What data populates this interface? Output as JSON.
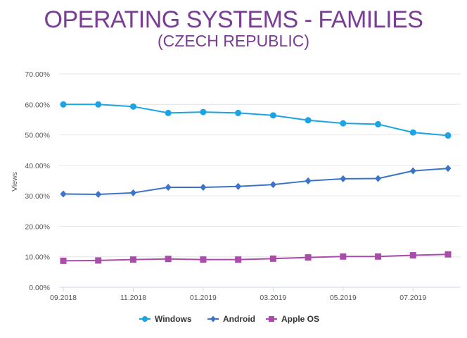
{
  "chart_data": {
    "type": "line",
    "title": "OPERATING SYSTEMS - FAMILIES",
    "subtitle": "(CZECH REPUBLIC)",
    "xlabel": "",
    "ylabel": "Views",
    "ylim": [
      0,
      70
    ],
    "yticks": [
      "0.00%",
      "10.00%",
      "20.00%",
      "30.00%",
      "40.00%",
      "50.00%",
      "60.00%",
      "70.00%"
    ],
    "x": [
      "09.2018",
      "10.2018",
      "11.2018",
      "12.2018",
      "01.2019",
      "02.2019",
      "03.2019",
      "04.2019",
      "05.2019",
      "06.2019",
      "07.2019",
      "08.2019"
    ],
    "xtick_labels": [
      "09.2018",
      "11.2018",
      "01.2019",
      "03.2019",
      "05.2019",
      "07.2019"
    ],
    "grid": true,
    "legend_position": "bottom",
    "series": [
      {
        "name": "Windows",
        "color": "#1ba4e3",
        "marker": "circle",
        "values": [
          60.0,
          60.0,
          59.3,
          57.2,
          57.5,
          57.2,
          56.4,
          54.8,
          53.8,
          53.5,
          50.8,
          49.8
        ]
      },
      {
        "name": "Android",
        "color": "#3b73c8",
        "marker": "diamond",
        "values": [
          30.6,
          30.5,
          31.0,
          32.8,
          32.8,
          33.1,
          33.7,
          34.9,
          35.6,
          35.7,
          38.2,
          39.0
        ]
      },
      {
        "name": "Apple OS",
        "color": "#a94ba9",
        "marker": "square",
        "values": [
          8.7,
          8.8,
          9.1,
          9.3,
          9.1,
          9.1,
          9.4,
          9.8,
          10.1,
          10.1,
          10.5,
          10.8
        ]
      }
    ]
  }
}
